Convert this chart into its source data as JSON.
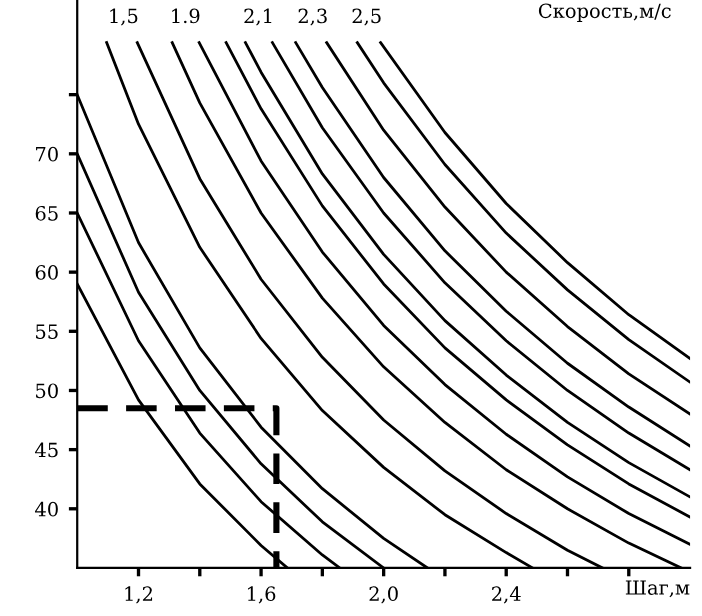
{
  "chart_data": {
    "type": "line",
    "xlabel": "Шаг,м",
    "line_style": "solid",
    "marker": "none",
    "grid": false,
    "legend": false,
    "xlim": [
      1.0,
      3.0
    ],
    "ylim": [
      35,
      83
    ],
    "xticks": [
      {
        "value": 1.2,
        "label": "1,2"
      },
      {
        "value": 1.4,
        "label": null
      },
      {
        "value": 1.6,
        "label": "1,6"
      },
      {
        "value": 1.8,
        "label": null
      },
      {
        "value": 2.0,
        "label": "2,0"
      },
      {
        "value": 2.2,
        "label": null
      },
      {
        "value": 2.4,
        "label": "2,4"
      },
      {
        "value": 2.6,
        "label": null
      },
      {
        "value": 2.8,
        "label": null
      }
    ],
    "yticks": [
      40,
      45,
      50,
      55,
      60,
      65,
      70,
      {
        "value": 75,
        "label": null
      }
    ],
    "annotations": [
      "Скорость,м/с"
    ],
    "series": [
      {
        "color": "#000000",
        "x": [
          1.0,
          1.2,
          1.4,
          1.6,
          1.686
        ],
        "values": [
          59,
          49.2,
          42.1,
          36.9,
          35
        ]
      },
      {
        "color": "#000000",
        "x": [
          1.0,
          1.2,
          1.4,
          1.6,
          1.8,
          1.857
        ],
        "values": [
          65,
          54.2,
          46.4,
          40.6,
          36.1,
          35
        ]
      },
      {
        "color": "#000000",
        "x": [
          1.0,
          1.2,
          1.4,
          1.6,
          1.8,
          2.0
        ],
        "values": [
          70,
          58.3,
          50,
          43.8,
          38.9,
          35
        ]
      },
      {
        "color": "#000000",
        "x": [
          1.0,
          1.2,
          1.4,
          1.6,
          1.8,
          2.0,
          2.143
        ],
        "values": [
          75,
          62.5,
          53.6,
          46.9,
          41.7,
          37.5,
          35
        ]
      },
      {
        "color": "#000000",
        "x": [
          1.096,
          1.2,
          1.4,
          1.6,
          1.8,
          2.0,
          2.2,
          2.4,
          2.486
        ],
        "values": [
          79.4,
          72.5,
          62.1,
          54.4,
          48.3,
          43.5,
          39.5,
          36.3,
          35
        ]
      },
      {
        "name": "1,5",
        "color": "#000000",
        "x": [
          1.196,
          1.4,
          1.6,
          1.8,
          2.0,
          2.2,
          2.4,
          2.6,
          2.714
        ],
        "values": [
          79.4,
          67.9,
          59.4,
          52.8,
          47.5,
          43.2,
          39.6,
          36.5,
          35
        ]
      },
      {
        "color": "#000000",
        "x": [
          1.31,
          1.4,
          1.6,
          1.8,
          2.0,
          2.2,
          2.4,
          2.6,
          2.8,
          2.971
        ],
        "values": [
          79.4,
          74.3,
          65,
          57.8,
          52,
          47.3,
          43.3,
          40,
          37.1,
          35
        ]
      },
      {
        "name": "1.9",
        "color": "#000000",
        "x": [
          1.398,
          1.6,
          1.8,
          2.0,
          2.2,
          2.4,
          2.6,
          2.8,
          3.0
        ],
        "values": [
          79.4,
          69.4,
          61.7,
          55.5,
          50.5,
          46.3,
          42.7,
          39.6,
          37
        ]
      },
      {
        "color": "#000000",
        "x": [
          1.486,
          1.6,
          1.8,
          2.0,
          2.2,
          2.4,
          2.6,
          2.8,
          3.0
        ],
        "values": [
          79.4,
          73.8,
          65.6,
          59,
          53.6,
          49.2,
          45.4,
          42.1,
          39.3
        ]
      },
      {
        "color": "#000000",
        "x": [
          1.549,
          1.6,
          1.8,
          2.0,
          2.2,
          2.4,
          2.6,
          2.8,
          3.0
        ],
        "values": [
          79.4,
          76.9,
          68.3,
          61.5,
          55.9,
          51.3,
          47.3,
          43.9,
          41
        ]
      },
      {
        "name": "2,1",
        "color": "#000000",
        "x": [
          1.637,
          1.8,
          2.0,
          2.2,
          2.4,
          2.6,
          2.8,
          3.0
        ],
        "values": [
          79.4,
          72.2,
          65,
          59.1,
          54.2,
          50,
          46.4,
          43.3
        ]
      },
      {
        "color": "#000000",
        "x": [
          1.713,
          1.8,
          2.0,
          2.2,
          2.4,
          2.6,
          2.8,
          3.0
        ],
        "values": [
          79.4,
          75.6,
          68,
          61.8,
          56.7,
          52.3,
          48.6,
          45.3
        ]
      },
      {
        "name": "2,3",
        "color": "#000000",
        "x": [
          1.814,
          2.0,
          2.2,
          2.4,
          2.6,
          2.8,
          3.0
        ],
        "values": [
          79.4,
          72,
          65.5,
          60,
          55.4,
          51.4,
          48
        ]
      },
      {
        "color": "#000000",
        "x": [
          1.914,
          2.0,
          2.2,
          2.4,
          2.6,
          2.8,
          3.0
        ],
        "values": [
          79.4,
          76,
          69.1,
          63.3,
          58.5,
          54.3,
          50.7
        ]
      },
      {
        "name": "2,5",
        "color": "#000000",
        "x": [
          1.99,
          2.2,
          2.4,
          2.6,
          2.8,
          3.0
        ],
        "values": [
          79.4,
          71.8,
          65.8,
          60.8,
          56.4,
          52.7
        ]
      },
      {
        "color": "#000000",
        "line_style": "dashed",
        "x": [
          1.0,
          1.65,
          1.65
        ],
        "values": [
          48.5,
          48.5,
          35
        ]
      }
    ]
  }
}
